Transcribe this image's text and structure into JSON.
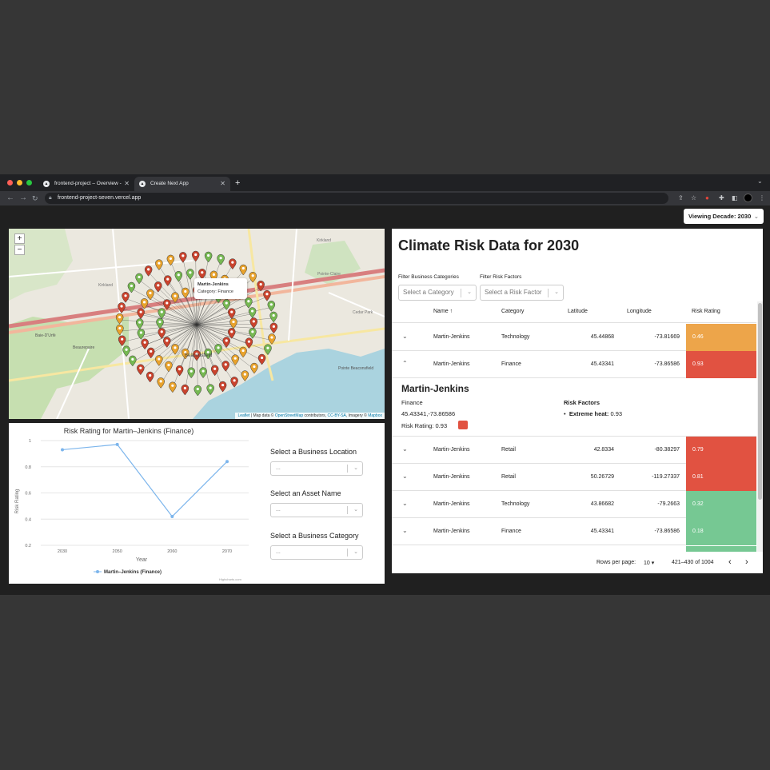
{
  "browser": {
    "tabs": [
      {
        "title": "frontend-project – Overview -",
        "active": false
      },
      {
        "title": "Create Next App",
        "active": true
      }
    ],
    "new_tab": "+",
    "url": "frontend-project-seven.vercel.app"
  },
  "header": {
    "decade_label": "Viewing Decade: 2030"
  },
  "map": {
    "zoom_in": "+",
    "zoom_out": "−",
    "place_labels": {
      "kirkland_top": "Kirkland",
      "kirkland_left": "Kirkland",
      "baie_durfe": "Baie-D'Urfé",
      "beaurepaire": "Beaurepaire",
      "beaconsfield": "Beaconsfield",
      "pointe_claire": "Pointe-Claire",
      "pointe_beaconsfield": "Pointe Beaconsfield",
      "cedar_park": "Cedar Park"
    },
    "popup": {
      "name": "Martin-Jenkins",
      "category": "Category: Finance"
    },
    "attribution": {
      "leaflet": "Leaflet",
      "map_data": " | Map data © ",
      "osm": "OpenStreetMap",
      "contributors": " contributors, ",
      "ccbysa": "CC-BY-SA",
      "imagery": ", Imagery © ",
      "mapbox": "Mapbox"
    },
    "marker_colors": {
      "green": "#76b852",
      "orange": "#e8a22c",
      "red": "#c9432d"
    }
  },
  "chart": {
    "title": "Risk Rating for Martin–Jenkins (Finance)",
    "credit": "Highcharts.com",
    "selects": [
      {
        "label": "Select a Business Location",
        "value": "..."
      },
      {
        "label": "Select an Asset Name",
        "value": "..."
      },
      {
        "label": "Select a Business Category",
        "value": "..."
      }
    ]
  },
  "chart_data": {
    "type": "line",
    "title": "Risk Rating for Martin–Jenkins (Finance)",
    "xlabel": "Year",
    "ylabel": "Risk Rating",
    "categories": [
      "2030",
      "2050",
      "2060",
      "2070"
    ],
    "series": [
      {
        "name": "Martin–Jenkins (Finance)",
        "values": [
          0.93,
          0.97,
          0.42,
          0.84
        ]
      }
    ],
    "y_ticks": [
      0.2,
      0.4,
      0.6,
      0.8,
      1
    ],
    "ylim": [
      0.2,
      1
    ],
    "grid": true,
    "legend": "bottom-center",
    "color": "#7cb5ec"
  },
  "table": {
    "title": "Climate Risk Data for 2030",
    "filters": {
      "category_label": "Filter Business Categories",
      "category_placeholder": "Select a Category",
      "risk_label": "Filter Risk Factors",
      "risk_placeholder": "Select a Risk Factor"
    },
    "headers": {
      "name": "Name ↑",
      "category": "Category",
      "latitude": "Latitude",
      "longitude": "Longitude",
      "risk": "Risk Rating"
    },
    "rows": [
      {
        "name": "Martin-Jenkins",
        "category": "Technology",
        "lat": "45.44868",
        "lng": "-73.81669",
        "risk": "0.46",
        "color": "#eda54a",
        "expanded": false
      },
      {
        "name": "Martin-Jenkins",
        "category": "Finance",
        "lat": "45.43341",
        "lng": "-73.86586",
        "risk": "0.93",
        "color": "#e15241",
        "expanded": true
      },
      {
        "name": "Martin-Jenkins",
        "category": "Retail",
        "lat": "42.8334",
        "lng": "-80.38297",
        "risk": "0.79",
        "color": "#e15241",
        "expanded": false
      },
      {
        "name": "Martin-Jenkins",
        "category": "Retail",
        "lat": "50.26729",
        "lng": "-119.27337",
        "risk": "0.81",
        "color": "#e15241",
        "expanded": false
      },
      {
        "name": "Martin-Jenkins",
        "category": "Technology",
        "lat": "43.86682",
        "lng": "-79.2663",
        "risk": "0.32",
        "color": "#76c893",
        "expanded": false
      },
      {
        "name": "Martin-Jenkins",
        "category": "Finance",
        "lat": "45.43341",
        "lng": "-73.86586",
        "risk": "0.18",
        "color": "#76c893",
        "expanded": false
      }
    ],
    "detail": {
      "name": "Martin-Jenkins",
      "category": "Finance",
      "coords": "45.43341,-73.86586",
      "risk_label": "Risk Rating: 0.93",
      "risk_color": "#e15241",
      "factors_title": "Risk Factors",
      "factor_name": "Extreme heat:",
      "factor_value": " 0.93"
    },
    "footer": {
      "rows_per_page_label": "Rows per page:",
      "rows_per_page": "10",
      "range": "421–430 of 1004"
    }
  }
}
